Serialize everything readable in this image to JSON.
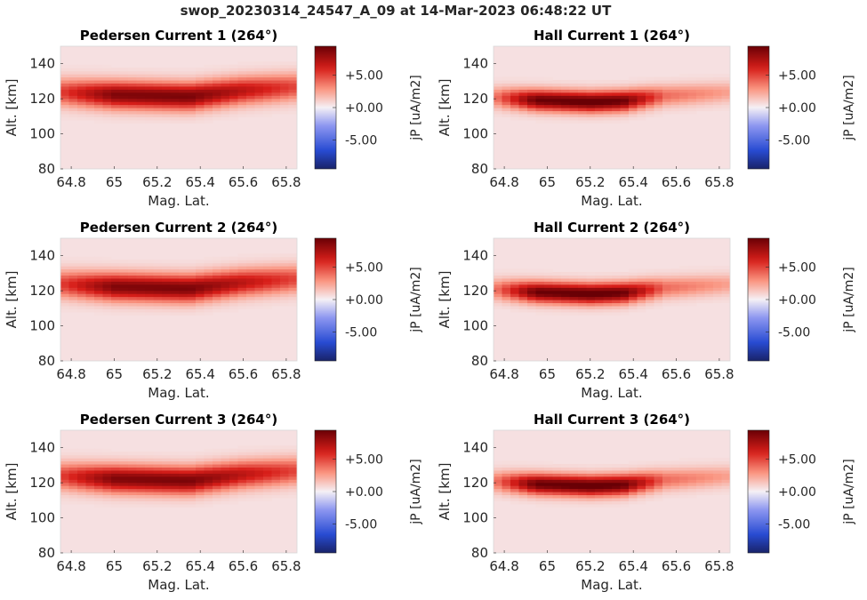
{
  "figure": {
    "title": "swop_20230314_24547_A_09 at 14-Mar-2023 06:48:22 UT"
  },
  "chart_data": [
    {
      "type": "heatmap",
      "title": "Pedersen Current 1 (264°)",
      "xlabel": "Mag. Lat.",
      "ylabel": "Alt. [km]",
      "xlim": [
        64.75,
        65.85
      ],
      "ylim": [
        80,
        150
      ],
      "x_ticks": [
        64.8,
        65.0,
        65.2,
        65.4,
        65.6,
        65.8
      ],
      "x_tick_labels": [
        "64.8",
        "65",
        "65.2",
        "65.4",
        "65.6",
        "65.8"
      ],
      "y_ticks": [
        80,
        100,
        120,
        140
      ],
      "y_tick_labels": [
        "80",
        "100",
        "120",
        "140"
      ],
      "colorbar": {
        "label": "jP [uA/m2]",
        "clim": [
          -9.5,
          9.5
        ],
        "ticks": [
          5,
          0,
          -5
        ],
        "tick_labels": [
          "+5.00",
          "+0.00",
          "-5.00"
        ],
        "colormap": "blue-white-red"
      },
      "background_value": 0.5,
      "band": {
        "x": [
          64.75,
          65.0,
          65.35,
          65.6,
          65.85
        ],
        "center_alt": [
          124,
          122.5,
          121.5,
          125,
          127
        ],
        "peak_value": [
          5.2,
          8.8,
          9.0,
          7.0,
          5.0
        ],
        "half_width_km": 8.5
      }
    },
    {
      "type": "heatmap",
      "title": "Hall Current 1 (264°)",
      "xlabel": "Mag. Lat.",
      "ylabel": "Alt. [km]",
      "xlim": [
        64.75,
        65.85
      ],
      "ylim": [
        80,
        150
      ],
      "x_ticks": [
        64.8,
        65.0,
        65.2,
        65.4,
        65.6,
        65.8
      ],
      "x_tick_labels": [
        "64.8",
        "65",
        "65.2",
        "65.4",
        "65.6",
        "65.8"
      ],
      "y_ticks": [
        80,
        100,
        120,
        140
      ],
      "y_tick_labels": [
        "80",
        "100",
        "120",
        "140"
      ],
      "colorbar": {
        "label": "jP [uA/m2]",
        "clim": [
          -9.5,
          9.5
        ],
        "ticks": [
          5,
          0,
          -5
        ],
        "tick_labels": [
          "+5.00",
          "+0.00",
          "-5.00"
        ],
        "colormap": "blue-white-red"
      },
      "background_value": 0.5,
      "band": {
        "x": [
          64.75,
          64.95,
          65.2,
          65.35,
          65.55,
          65.85
        ],
        "center_alt": [
          121,
          119.5,
          118.5,
          119,
          122,
          124
        ],
        "peak_value": [
          3.5,
          9.5,
          10.0,
          9.5,
          4.0,
          2.5
        ],
        "half_width_km": 6.5
      }
    },
    {
      "type": "heatmap",
      "title": "Pedersen Current 2 (264°)",
      "xlabel": "Mag. Lat.",
      "ylabel": "Alt. [km]",
      "xlim": [
        64.75,
        65.85
      ],
      "ylim": [
        80,
        150
      ],
      "x_ticks": [
        64.8,
        65.0,
        65.2,
        65.4,
        65.6,
        65.8
      ],
      "x_tick_labels": [
        "64.8",
        "65",
        "65.2",
        "65.4",
        "65.6",
        "65.8"
      ],
      "y_ticks": [
        80,
        100,
        120,
        140
      ],
      "y_tick_labels": [
        "80",
        "100",
        "120",
        "140"
      ],
      "colorbar": {
        "label": "jP [uA/m2]",
        "clim": [
          -9.5,
          9.5
        ],
        "ticks": [
          5,
          0,
          -5
        ],
        "tick_labels": [
          "+5.00",
          "+0.00",
          "-5.00"
        ],
        "colormap": "blue-white-red"
      },
      "background_value": 0.5,
      "band": {
        "x": [
          64.75,
          65.0,
          65.35,
          65.6,
          65.85
        ],
        "center_alt": [
          124,
          122.5,
          121.5,
          125,
          127
        ],
        "peak_value": [
          5.2,
          8.8,
          9.0,
          7.0,
          5.0
        ],
        "half_width_km": 8.5
      }
    },
    {
      "type": "heatmap",
      "title": "Hall Current 2 (264°)",
      "xlabel": "Mag. Lat.",
      "ylabel": "Alt. [km]",
      "xlim": [
        64.75,
        65.85
      ],
      "ylim": [
        80,
        150
      ],
      "x_ticks": [
        64.8,
        65.0,
        65.2,
        65.4,
        65.6,
        65.8
      ],
      "x_tick_labels": [
        "64.8",
        "65",
        "65.2",
        "65.4",
        "65.6",
        "65.8"
      ],
      "y_ticks": [
        80,
        100,
        120,
        140
      ],
      "y_tick_labels": [
        "80",
        "100",
        "120",
        "140"
      ],
      "colorbar": {
        "label": "jP [uA/m2]",
        "clim": [
          -9.5,
          9.5
        ],
        "ticks": [
          5,
          0,
          -5
        ],
        "tick_labels": [
          "+5.00",
          "+0.00",
          "-5.00"
        ],
        "colormap": "blue-white-red"
      },
      "background_value": 0.5,
      "band": {
        "x": [
          64.75,
          64.95,
          65.2,
          65.35,
          65.55,
          65.85
        ],
        "center_alt": [
          121,
          119.5,
          118.5,
          119,
          122,
          124
        ],
        "peak_value": [
          3.5,
          9.5,
          10.0,
          9.5,
          4.0,
          2.5
        ],
        "half_width_km": 6.5
      }
    },
    {
      "type": "heatmap",
      "title": "Pedersen Current 3 (264°)",
      "xlabel": "Mag. Lat.",
      "ylabel": "Alt. [km]",
      "xlim": [
        64.75,
        65.85
      ],
      "ylim": [
        80,
        150
      ],
      "x_ticks": [
        64.8,
        65.0,
        65.2,
        65.4,
        65.6,
        65.8
      ],
      "x_tick_labels": [
        "64.8",
        "65",
        "65.2",
        "65.4",
        "65.6",
        "65.8"
      ],
      "y_ticks": [
        80,
        100,
        120,
        140
      ],
      "y_tick_labels": [
        "80",
        "100",
        "120",
        "140"
      ],
      "colorbar": {
        "label": "jP [uA/m2]",
        "clim": [
          -9.5,
          9.5
        ],
        "ticks": [
          5,
          0,
          -5
        ],
        "tick_labels": [
          "+5.00",
          "+0.00",
          "-5.00"
        ],
        "colormap": "blue-white-red"
      },
      "background_value": 0.5,
      "band": {
        "x": [
          64.75,
          65.0,
          65.35,
          65.6,
          65.85
        ],
        "center_alt": [
          124,
          122.5,
          121.5,
          125,
          127
        ],
        "peak_value": [
          5.2,
          8.8,
          9.0,
          7.0,
          5.0
        ],
        "half_width_km": 8.5
      }
    },
    {
      "type": "heatmap",
      "title": "Hall Current 3 (264°)",
      "xlabel": "Mag. Lat.",
      "ylabel": "Alt. [km]",
      "xlim": [
        64.75,
        65.85
      ],
      "ylim": [
        80,
        150
      ],
      "x_ticks": [
        64.8,
        65.0,
        65.2,
        65.4,
        65.6,
        65.8
      ],
      "x_tick_labels": [
        "64.8",
        "65",
        "65.2",
        "65.4",
        "65.6",
        "65.8"
      ],
      "y_ticks": [
        80,
        100,
        120,
        140
      ],
      "y_tick_labels": [
        "80",
        "100",
        "120",
        "140"
      ],
      "colorbar": {
        "label": "jP [uA/m2]",
        "clim": [
          -9.5,
          9.5
        ],
        "ticks": [
          5,
          0,
          -5
        ],
        "tick_labels": [
          "+5.00",
          "+0.00",
          "-5.00"
        ],
        "colormap": "blue-white-red"
      },
      "background_value": 0.5,
      "band": {
        "x": [
          64.75,
          64.95,
          65.2,
          65.35,
          65.55,
          65.85
        ],
        "center_alt": [
          121,
          119.5,
          118.5,
          119,
          122,
          124
        ],
        "peak_value": [
          3.5,
          9.5,
          10.0,
          9.5,
          4.0,
          2.5
        ],
        "half_width_km": 6.5
      }
    }
  ],
  "colors": {
    "text": "#262626",
    "axis_line": "#cccccc",
    "tick": "#262626"
  }
}
